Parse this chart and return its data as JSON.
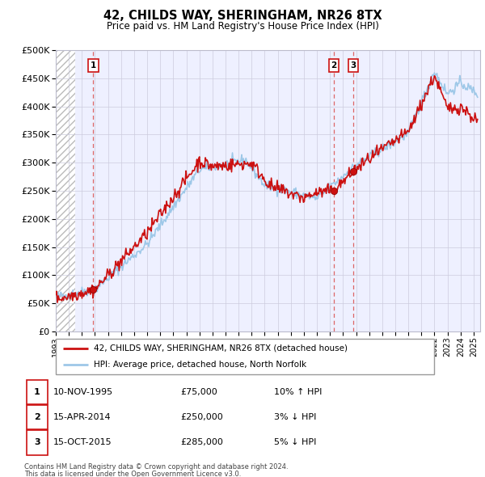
{
  "title": "42, CHILDS WAY, SHERINGHAM, NR26 8TX",
  "subtitle": "Price paid vs. HM Land Registry's House Price Index (HPI)",
  "legend_line1": "42, CHILDS WAY, SHERINGHAM, NR26 8TX (detached house)",
  "legend_line2": "HPI: Average price, detached house, North Norfolk",
  "footer1": "Contains HM Land Registry data © Crown copyright and database right 2024.",
  "footer2": "This data is licensed under the Open Government Licence v3.0.",
  "transactions": [
    {
      "id": 1,
      "date": "10-NOV-1995",
      "year": 1995.87,
      "price": 75000,
      "hpi_rel": "10% ↑ HPI"
    },
    {
      "id": 2,
      "date": "15-APR-2014",
      "year": 2014.29,
      "price": 250000,
      "hpi_rel": "3% ↓ HPI"
    },
    {
      "id": 3,
      "date": "15-OCT-2015",
      "year": 2015.79,
      "price": 285000,
      "hpi_rel": "5% ↓ HPI"
    }
  ],
  "hpi_color": "#9EC8E8",
  "price_color": "#CC1111",
  "dot_color": "#CC1111",
  "dashed_line_color": "#DD6666",
  "grid_color": "#CCCCDD",
  "ylim": [
    0,
    500000
  ],
  "yticks": [
    0,
    50000,
    100000,
    150000,
    200000,
    250000,
    300000,
    350000,
    400000,
    450000,
    500000
  ],
  "xlim_start": 1993.0,
  "xlim_end": 2025.5,
  "plot_bg": "#EEF0FF",
  "hatch_end_year": 1994.5
}
